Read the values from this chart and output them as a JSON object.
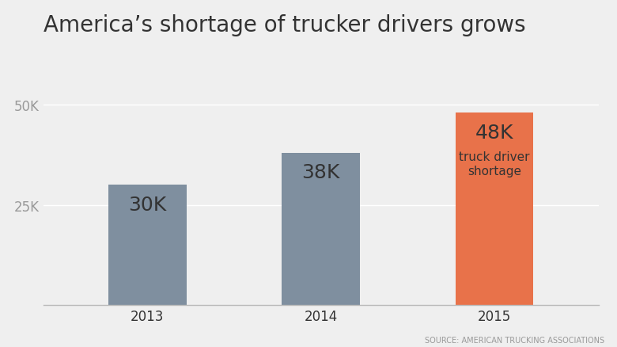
{
  "title": "America’s shortage of trucker drivers grows",
  "categories": [
    "2013",
    "2014",
    "2015"
  ],
  "values": [
    30000,
    38000,
    48000
  ],
  "bar_colors": [
    "#7f8f9f",
    "#7f8f9f",
    "#e8724a"
  ],
  "bar_labels": [
    "30K",
    "38K",
    "48K"
  ],
  "annotation_label": "truck driver\nshortage",
  "source_text": "SOURCE: AMERICAN TRUCKING ASSOCIATIONS",
  "ylim": [
    0,
    52000
  ],
  "yticks": [
    25000,
    50000
  ],
  "ytick_labels": [
    "25K",
    "50K"
  ],
  "background_color": "#efefef",
  "title_fontsize": 20,
  "bar_label_fontsize": 18,
  "annotation_fontsize": 11,
  "source_fontsize": 7,
  "tick_label_fontsize": 12,
  "text_color": "#333333",
  "grid_color": "#ffffff",
  "ytick_color": "#999999",
  "axis_color": "#bbbbbb",
  "bar_width": 0.45
}
